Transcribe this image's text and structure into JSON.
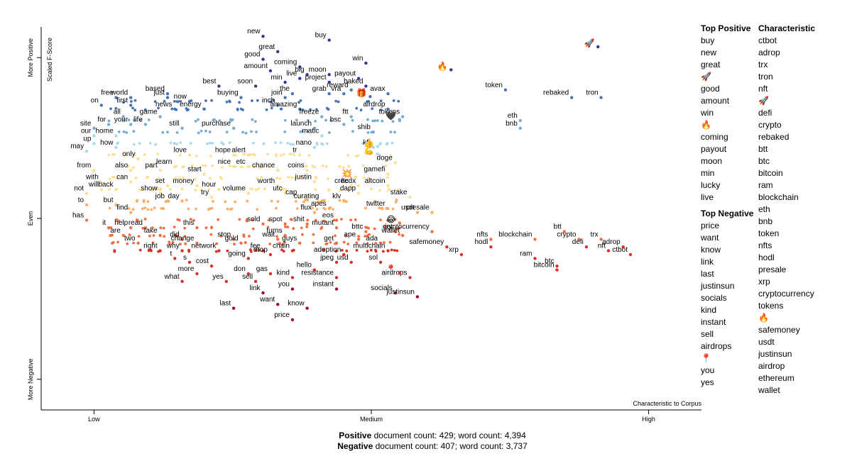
{
  "chart_data": {
    "type": "scatter",
    "xlabel": "Characteristic to Corpus",
    "ylabel": "Scaled F-Score",
    "x_ticks": [
      "Low",
      "Medium",
      "High"
    ],
    "y_ticks": [
      "More Negative",
      "Even",
      "More Positive"
    ],
    "x_range": [
      0,
      1
    ],
    "y_range": [
      0,
      1
    ],
    "labeled_points": [
      {
        "label": "new",
        "x": 0.3,
        "y": 0.97
      },
      {
        "label": "buy",
        "x": 0.39,
        "y": 0.96
      },
      {
        "label": "great",
        "x": 0.32,
        "y": 0.93
      },
      {
        "label": "good",
        "x": 0.3,
        "y": 0.91
      },
      {
        "label": "amount",
        "x": 0.31,
        "y": 0.88
      },
      {
        "label": "coming",
        "x": 0.35,
        "y": 0.89
      },
      {
        "label": "big",
        "x": 0.36,
        "y": 0.87
      },
      {
        "label": "moon",
        "x": 0.39,
        "y": 0.87
      },
      {
        "label": "payout",
        "x": 0.43,
        "y": 0.86
      },
      {
        "label": "win",
        "x": 0.44,
        "y": 0.9
      },
      {
        "label": "min",
        "x": 0.33,
        "y": 0.85
      },
      {
        "label": "live",
        "x": 0.35,
        "y": 0.86
      },
      {
        "label": "project",
        "x": 0.39,
        "y": 0.85
      },
      {
        "label": "reward",
        "x": 0.42,
        "y": 0.83
      },
      {
        "label": "baked",
        "x": 0.44,
        "y": 0.84
      },
      {
        "label": "best",
        "x": 0.24,
        "y": 0.84
      },
      {
        "label": "soon",
        "x": 0.29,
        "y": 0.84
      },
      {
        "label": "the",
        "x": 0.34,
        "y": 0.82
      },
      {
        "label": "grab",
        "x": 0.39,
        "y": 0.82
      },
      {
        "label": "vra",
        "x": 0.41,
        "y": 0.82
      },
      {
        "label": "avax",
        "x": 0.47,
        "y": 0.82
      },
      {
        "label": "based",
        "x": 0.17,
        "y": 0.82
      },
      {
        "label": "just",
        "x": 0.17,
        "y": 0.81
      },
      {
        "label": "now",
        "x": 0.2,
        "y": 0.8
      },
      {
        "label": "free",
        "x": 0.1,
        "y": 0.81
      },
      {
        "label": "world",
        "x": 0.12,
        "y": 0.81
      },
      {
        "label": "first",
        "x": 0.12,
        "y": 0.79
      },
      {
        "label": "buying",
        "x": 0.27,
        "y": 0.81
      },
      {
        "label": "join",
        "x": 0.33,
        "y": 0.81
      },
      {
        "label": "inch",
        "x": 0.32,
        "y": 0.79
      },
      {
        "label": "on",
        "x": 0.08,
        "y": 0.79
      },
      {
        "label": "news",
        "x": 0.18,
        "y": 0.78
      },
      {
        "label": "energy",
        "x": 0.22,
        "y": 0.78
      },
      {
        "label": "amazing",
        "x": 0.35,
        "y": 0.78
      },
      {
        "label": "ftt",
        "x": 0.42,
        "y": 0.76
      },
      {
        "label": "airdrop",
        "x": 0.47,
        "y": 0.78
      },
      {
        "label": "all",
        "x": 0.11,
        "y": 0.76
      },
      {
        "label": "game",
        "x": 0.16,
        "y": 0.76
      },
      {
        "label": "freeze",
        "x": 0.38,
        "y": 0.76
      },
      {
        "label": "tokens",
        "x": 0.49,
        "y": 0.76
      },
      {
        "label": "for",
        "x": 0.09,
        "y": 0.74
      },
      {
        "label": "your",
        "x": 0.12,
        "y": 0.74
      },
      {
        "label": "life",
        "x": 0.14,
        "y": 0.74
      },
      {
        "label": "still",
        "x": 0.19,
        "y": 0.73
      },
      {
        "label": "purchase",
        "x": 0.26,
        "y": 0.73
      },
      {
        "label": "bsc",
        "x": 0.41,
        "y": 0.74
      },
      {
        "label": "site",
        "x": 0.07,
        "y": 0.73
      },
      {
        "label": "launch",
        "x": 0.37,
        "y": 0.73
      },
      {
        "label": "our",
        "x": 0.07,
        "y": 0.71
      },
      {
        "label": "home",
        "x": 0.1,
        "y": 0.71
      },
      {
        "label": "matic",
        "x": 0.38,
        "y": 0.71
      },
      {
        "label": "shib",
        "x": 0.45,
        "y": 0.72
      },
      {
        "label": "up",
        "x": 0.07,
        "y": 0.69
      },
      {
        "label": "kft",
        "x": 0.45,
        "y": 0.68
      },
      {
        "label": "may",
        "x": 0.06,
        "y": 0.67
      },
      {
        "label": "how",
        "x": 0.1,
        "y": 0.68
      },
      {
        "label": "nano",
        "x": 0.37,
        "y": 0.68
      },
      {
        "label": "love",
        "x": 0.2,
        "y": 0.66
      },
      {
        "label": "hope",
        "x": 0.26,
        "y": 0.66
      },
      {
        "label": "alert",
        "x": 0.28,
        "y": 0.66
      },
      {
        "label": "tr",
        "x": 0.35,
        "y": 0.66
      },
      {
        "label": "only",
        "x": 0.13,
        "y": 0.65
      },
      {
        "label": "learn",
        "x": 0.18,
        "y": 0.63
      },
      {
        "label": "nice",
        "x": 0.26,
        "y": 0.63
      },
      {
        "label": "etc",
        "x": 0.28,
        "y": 0.63
      },
      {
        "label": "doge",
        "x": 0.48,
        "y": 0.64
      },
      {
        "label": "from",
        "x": 0.07,
        "y": 0.62
      },
      {
        "label": "also",
        "x": 0.12,
        "y": 0.62
      },
      {
        "label": "part",
        "x": 0.16,
        "y": 0.62
      },
      {
        "label": "start",
        "x": 0.22,
        "y": 0.61
      },
      {
        "label": "chance",
        "x": 0.32,
        "y": 0.62
      },
      {
        "label": "coins",
        "x": 0.36,
        "y": 0.62
      },
      {
        "label": "gamefi",
        "x": 0.47,
        "y": 0.61
      },
      {
        "label": "with",
        "x": 0.08,
        "y": 0.59
      },
      {
        "label": "can",
        "x": 0.12,
        "y": 0.59
      },
      {
        "label": "set",
        "x": 0.17,
        "y": 0.58
      },
      {
        "label": "money",
        "x": 0.21,
        "y": 0.58
      },
      {
        "label": "worth",
        "x": 0.32,
        "y": 0.58
      },
      {
        "label": "justin",
        "x": 0.37,
        "y": 0.59
      },
      {
        "label": "ltc",
        "x": 0.42,
        "y": 0.58
      },
      {
        "label": "creedx",
        "x": 0.43,
        "y": 0.58
      },
      {
        "label": "altcoin",
        "x": 0.47,
        "y": 0.58
      },
      {
        "label": "will",
        "x": 0.08,
        "y": 0.57
      },
      {
        "label": "back",
        "x": 0.1,
        "y": 0.57
      },
      {
        "label": "hour",
        "x": 0.24,
        "y": 0.57
      },
      {
        "label": "show",
        "x": 0.16,
        "y": 0.56
      },
      {
        "label": "volume",
        "x": 0.28,
        "y": 0.56
      },
      {
        "label": "utc",
        "x": 0.33,
        "y": 0.56
      },
      {
        "label": "dapp",
        "x": 0.43,
        "y": 0.56
      },
      {
        "label": "not",
        "x": 0.06,
        "y": 0.56
      },
      {
        "label": "job",
        "x": 0.17,
        "y": 0.54
      },
      {
        "label": "try",
        "x": 0.23,
        "y": 0.55
      },
      {
        "label": "cap",
        "x": 0.35,
        "y": 0.55
      },
      {
        "label": "stake",
        "x": 0.5,
        "y": 0.55
      },
      {
        "label": "to",
        "x": 0.06,
        "y": 0.53
      },
      {
        "label": "but",
        "x": 0.1,
        "y": 0.53
      },
      {
        "label": "day",
        "x": 0.19,
        "y": 0.54
      },
      {
        "label": "curating",
        "x": 0.38,
        "y": 0.54
      },
      {
        "label": "klv",
        "x": 0.41,
        "y": 0.54
      },
      {
        "label": "twitter",
        "x": 0.47,
        "y": 0.52
      },
      {
        "label": "usdt",
        "x": 0.51,
        "y": 0.51
      },
      {
        "label": "presale",
        "x": 0.53,
        "y": 0.51
      },
      {
        "label": "flux",
        "x": 0.37,
        "y": 0.51
      },
      {
        "label": "apes",
        "x": 0.39,
        "y": 0.52
      },
      {
        "label": "find",
        "x": 0.12,
        "y": 0.51
      },
      {
        "label": "has",
        "x": 0.06,
        "y": 0.49
      },
      {
        "label": "sold",
        "x": 0.3,
        "y": 0.48
      },
      {
        "label": "spot",
        "x": 0.33,
        "y": 0.48
      },
      {
        "label": "shit",
        "x": 0.36,
        "y": 0.48
      },
      {
        "label": "eos",
        "x": 0.4,
        "y": 0.49
      },
      {
        "label": "it",
        "x": 0.09,
        "y": 0.47
      },
      {
        "label": "help",
        "x": 0.12,
        "y": 0.47
      },
      {
        "label": "read",
        "x": 0.14,
        "y": 0.47
      },
      {
        "label": "this",
        "x": 0.21,
        "y": 0.47
      },
      {
        "label": "mutant",
        "x": 0.4,
        "y": 0.47
      },
      {
        "label": "bttc",
        "x": 0.44,
        "y": 0.46
      },
      {
        "label": "jet",
        "x": 0.48,
        "y": 0.46
      },
      {
        "label": "cryptocurrency",
        "x": 0.53,
        "y": 0.46
      },
      {
        "label": "are",
        "x": 0.11,
        "y": 0.45
      },
      {
        "label": "take",
        "x": 0.16,
        "y": 0.45
      },
      {
        "label": "turns",
        "x": 0.33,
        "y": 0.45
      },
      {
        "label": "wallet",
        "x": 0.49,
        "y": 0.45
      },
      {
        "label": "did",
        "x": 0.19,
        "y": 0.44
      },
      {
        "label": "stop",
        "x": 0.26,
        "y": 0.44
      },
      {
        "label": "wait",
        "x": 0.32,
        "y": 0.44
      },
      {
        "label": "guys",
        "x": 0.35,
        "y": 0.43
      },
      {
        "label": "ape",
        "x": 0.43,
        "y": 0.44
      },
      {
        "label": "ada",
        "x": 0.46,
        "y": 0.43
      },
      {
        "label": "two",
        "x": 0.13,
        "y": 0.43
      },
      {
        "label": "change",
        "x": 0.21,
        "y": 0.43
      },
      {
        "label": "gold",
        "x": 0.27,
        "y": 0.43
      },
      {
        "label": "get",
        "x": 0.4,
        "y": 0.43
      },
      {
        "label": "right",
        "x": 0.16,
        "y": 0.41
      },
      {
        "label": "why",
        "x": 0.19,
        "y": 0.41
      },
      {
        "label": "network",
        "x": 0.24,
        "y": 0.41
      },
      {
        "label": "fee",
        "x": 0.3,
        "y": 0.41
      },
      {
        "label": "chain",
        "x": 0.34,
        "y": 0.41
      },
      {
        "label": "multichain",
        "x": 0.47,
        "y": 0.41
      },
      {
        "label": "drop",
        "x": 0.31,
        "y": 0.4
      },
      {
        "label": "adoption",
        "x": 0.41,
        "y": 0.4
      },
      {
        "label": "t",
        "x": 0.18,
        "y": 0.39
      },
      {
        "label": "s",
        "x": 0.2,
        "y": 0.38
      },
      {
        "label": "going",
        "x": 0.28,
        "y": 0.39
      },
      {
        "label": "cost",
        "x": 0.23,
        "y": 0.37
      },
      {
        "label": "jpeg",
        "x": 0.4,
        "y": 0.38
      },
      {
        "label": "usd",
        "x": 0.42,
        "y": 0.38
      },
      {
        "label": "sol",
        "x": 0.46,
        "y": 0.38
      },
      {
        "label": "hello",
        "x": 0.37,
        "y": 0.36
      },
      {
        "label": "more",
        "x": 0.21,
        "y": 0.35
      },
      {
        "label": "gas",
        "x": 0.31,
        "y": 0.35
      },
      {
        "label": "don",
        "x": 0.28,
        "y": 0.35
      },
      {
        "label": "resistance",
        "x": 0.4,
        "y": 0.34
      },
      {
        "label": "what",
        "x": 0.19,
        "y": 0.33
      },
      {
        "label": "yes",
        "x": 0.25,
        "y": 0.33
      },
      {
        "label": "kind",
        "x": 0.34,
        "y": 0.34
      },
      {
        "label": "airdrops",
        "x": 0.5,
        "y": 0.34
      },
      {
        "label": "sell",
        "x": 0.29,
        "y": 0.33
      },
      {
        "label": "you",
        "x": 0.34,
        "y": 0.31
      },
      {
        "label": "instant",
        "x": 0.4,
        "y": 0.31
      },
      {
        "label": "link",
        "x": 0.3,
        "y": 0.3
      },
      {
        "label": "socials",
        "x": 0.48,
        "y": 0.3
      },
      {
        "label": "justinsun",
        "x": 0.51,
        "y": 0.29
      },
      {
        "label": "want",
        "x": 0.32,
        "y": 0.27
      },
      {
        "label": "know",
        "x": 0.36,
        "y": 0.26
      },
      {
        "label": "last",
        "x": 0.26,
        "y": 0.26
      },
      {
        "label": "price",
        "x": 0.34,
        "y": 0.23
      },
      {
        "label": "safemoney",
        "x": 0.55,
        "y": 0.42
      },
      {
        "label": "xrp",
        "x": 0.57,
        "y": 0.4
      },
      {
        "label": "nfts",
        "x": 0.61,
        "y": 0.44
      },
      {
        "label": "hodl",
        "x": 0.61,
        "y": 0.42
      },
      {
        "label": "blockchain",
        "x": 0.67,
        "y": 0.44
      },
      {
        "label": "btt",
        "x": 0.71,
        "y": 0.46
      },
      {
        "label": "crypto",
        "x": 0.73,
        "y": 0.44
      },
      {
        "label": "trx",
        "x": 0.76,
        "y": 0.44
      },
      {
        "label": "defi",
        "x": 0.74,
        "y": 0.42
      },
      {
        "label": "nft",
        "x": 0.77,
        "y": 0.41
      },
      {
        "label": "adrop",
        "x": 0.79,
        "y": 0.42
      },
      {
        "label": "ctbot",
        "x": 0.8,
        "y": 0.4
      },
      {
        "label": "ram",
        "x": 0.67,
        "y": 0.39
      },
      {
        "label": "btc",
        "x": 0.7,
        "y": 0.37
      },
      {
        "label": "bitcoin",
        "x": 0.7,
        "y": 0.36
      },
      {
        "label": "token",
        "x": 0.63,
        "y": 0.83
      },
      {
        "label": "rebaked",
        "x": 0.72,
        "y": 0.81
      },
      {
        "label": "tron",
        "x": 0.76,
        "y": 0.81
      },
      {
        "label": "eth",
        "x": 0.65,
        "y": 0.75
      },
      {
        "label": "bnb",
        "x": 0.65,
        "y": 0.73
      }
    ],
    "emoji_points": [
      {
        "glyph": "🔥",
        "x": 0.55,
        "y": 0.89
      },
      {
        "glyph": "🚀",
        "x": 0.75,
        "y": 0.95
      },
      {
        "glyph": "🎁",
        "x": 0.44,
        "y": 0.82
      },
      {
        "glyph": "🖤",
        "x": 0.48,
        "y": 0.76
      },
      {
        "glyph": "👍",
        "x": 0.45,
        "y": 0.69
      },
      {
        "glyph": "💪",
        "x": 0.45,
        "y": 0.67
      },
      {
        "glyph": "💥",
        "x": 0.42,
        "y": 0.61
      },
      {
        "glyph": "😂",
        "x": 0.48,
        "y": 0.49
      },
      {
        "glyph": "📍",
        "x": 0.48,
        "y": 0.36
      }
    ]
  },
  "top_positive": {
    "title": "Top Positive",
    "terms": [
      "buy",
      "new",
      "great",
      "🚀",
      "good",
      "amount",
      "win",
      "🔥",
      "coming",
      "payout",
      "moon",
      "min",
      "lucky",
      "live"
    ]
  },
  "top_negative": {
    "title": "Top Negative",
    "terms": [
      "price",
      "want",
      "know",
      "link",
      "last",
      "justinsun",
      "socials",
      "kind",
      "instant",
      "sell",
      "airdrops",
      "📍",
      "you",
      "yes"
    ]
  },
  "characteristic": {
    "title": "Characteristic",
    "terms": [
      "ctbot",
      "adrop",
      "trx",
      "tron",
      "nft",
      "🚀",
      "defi",
      "crypto",
      "rebaked",
      "btt",
      "btc",
      "bitcoin",
      "ram",
      "blockchain",
      "eth",
      "bnb",
      "token",
      "nfts",
      "hodl",
      "presale",
      "xrp",
      "cryptocurrency",
      "tokens",
      "🔥",
      "safemoney",
      "usdt",
      "justinsun",
      "airdrop",
      "ethereum",
      "wallet"
    ]
  },
  "summary": {
    "positive_label": "Positive",
    "positive_text": " document count: 429; word count: 4,394",
    "negative_label": "Negative",
    "negative_text": " document count: 407; word count: 3,737"
  },
  "colors": {
    "pos_strong": "#313695",
    "pos": "#4575b4",
    "pos_light": "#74add1",
    "pos_pale": "#abd9e9",
    "neutral": "#e0f3f8",
    "neg_pale": "#fee090",
    "neg_light": "#fdae61",
    "neg": "#f46d43",
    "neg_strong": "#d73027",
    "neg_darkest": "#a50026",
    "axis": "#000000"
  }
}
